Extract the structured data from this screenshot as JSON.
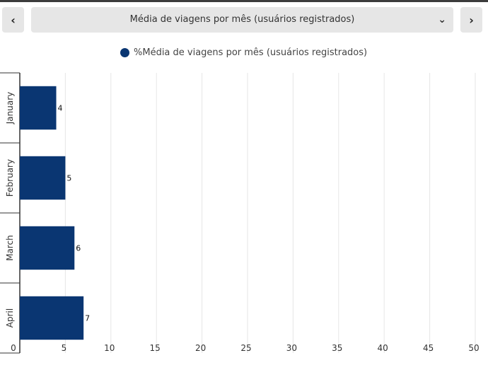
{
  "nav": {
    "prev_icon": "chevron-left-icon",
    "next_icon": "chevron-right-icon",
    "prev_glyph": "‹",
    "next_glyph": "›"
  },
  "selector": {
    "selected": "Média de viagens por mês (usuários registrados)",
    "chevron_icon": "chevron-down-icon",
    "chevron_glyph": "⌄"
  },
  "colors": {
    "bar": "#0a3672",
    "grid": "#e6e6e6",
    "axis": "#333333",
    "button_bg": "#e6e6e6"
  },
  "chart_data": {
    "type": "bar",
    "orientation": "horizontal",
    "categories": [
      "January",
      "February",
      "March",
      "April"
    ],
    "series": [
      {
        "name": "%Média de viagens por mês (usuários registrados)",
        "values": [
          4,
          5,
          6,
          7
        ]
      }
    ],
    "data_labels": [
      "4",
      "5",
      "6",
      "7"
    ],
    "xlim": [
      0,
      50
    ],
    "xticks": [
      0,
      5,
      10,
      15,
      20,
      25,
      30,
      35,
      40,
      45,
      50
    ],
    "grid": "vertical",
    "legend": "top-center"
  }
}
